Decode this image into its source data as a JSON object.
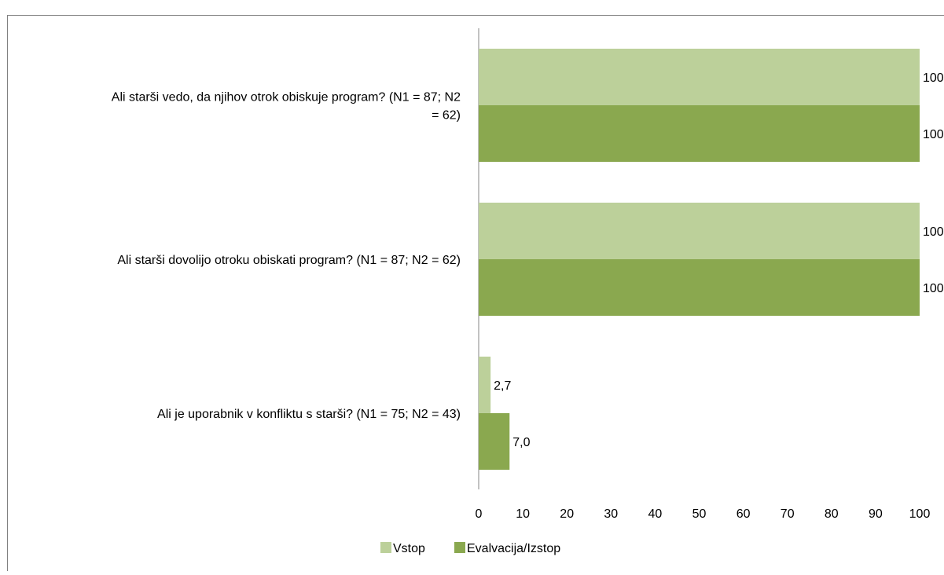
{
  "chart_data": {
    "type": "bar",
    "orientation": "horizontal",
    "categories": [
      "Ali starši vedo, da njihov otrok obiskuje program? (N1 = 87; N2 = 62)",
      "Ali starši dovolijo otroku obiskati program? (N1 = 87; N2 = 62)",
      "Ali je uporabnik v konfliktu s starši? (N1 = 75; N2 = 43)"
    ],
    "category_lines": [
      [
        "Ali starši vedo, da njihov otrok obiskuje program? (N1 = 87; N2",
        "= 62)"
      ],
      [
        "Ali starši dovolijo otroku obiskati program? (N1 = 87; N2 = 62)"
      ],
      [
        "Ali je uporabnik v konfliktu s starši? (N1 = 75; N2 = 43)"
      ]
    ],
    "series": [
      {
        "name": "Vstop",
        "values": [
          100,
          100,
          2.7
        ],
        "labels": [
          "100",
          "100",
          "2,7"
        ],
        "color": "#bcd09a"
      },
      {
        "name": "Evalvacija/Izstop",
        "values": [
          100,
          100,
          7.0
        ],
        "labels": [
          "100",
          "100",
          "7,0"
        ],
        "color": "#8aa84f"
      }
    ],
    "xlim": [
      0,
      100
    ],
    "xticks": [
      0,
      10,
      20,
      30,
      40,
      50,
      60,
      70,
      80,
      90,
      100
    ],
    "legend_position": "bottom",
    "grid": false
  }
}
